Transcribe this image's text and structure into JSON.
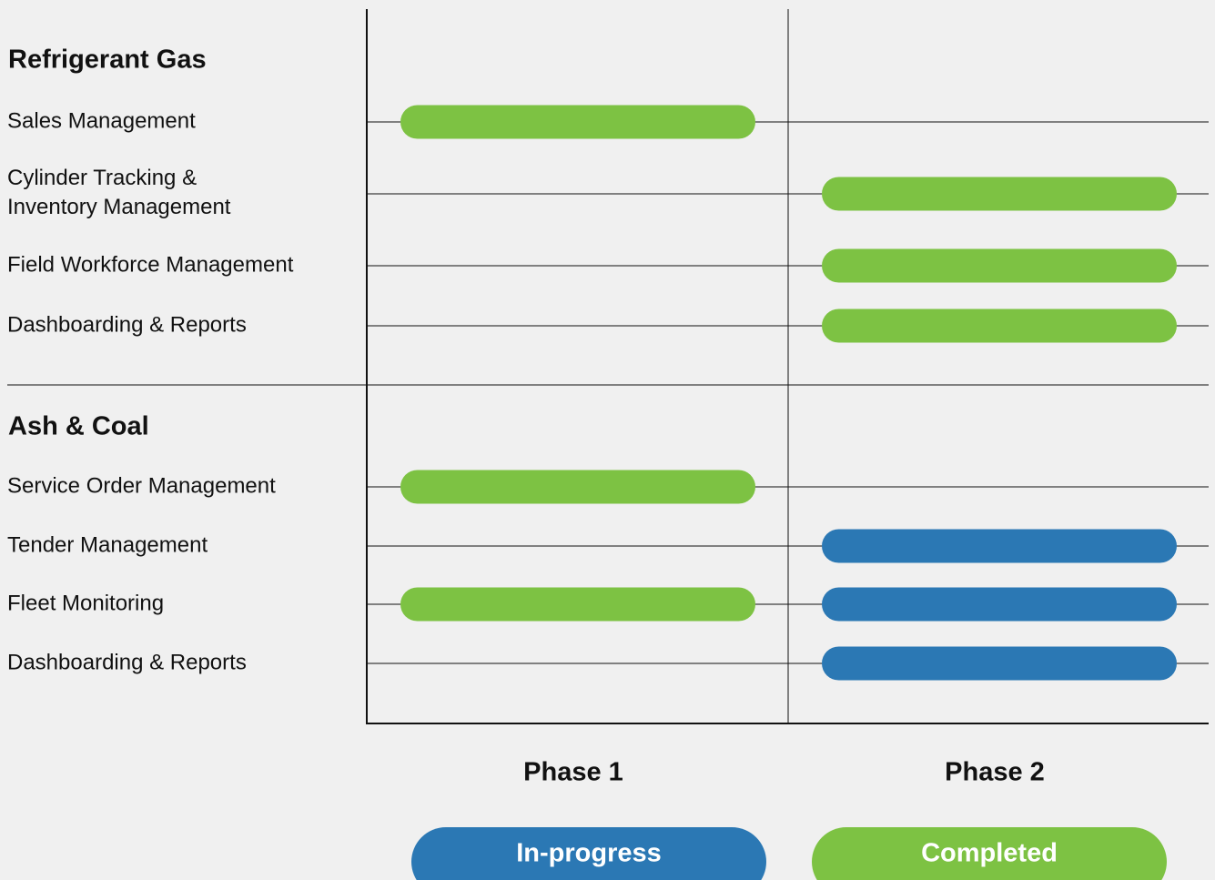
{
  "phases": [
    "Phase 1",
    "Phase 2"
  ],
  "legend": [
    {
      "label": "In-progress",
      "color": "#2b78b4"
    },
    {
      "label": "Completed",
      "color": "#7dc243"
    }
  ],
  "groups": [
    {
      "title": "Refrigerant Gas",
      "rows": [
        {
          "label": "Sales Management",
          "bars": [
            "Completed",
            null
          ]
        },
        {
          "label": "Cylinder Tracking &\nInventory Management",
          "bars": [
            null,
            "Completed"
          ]
        },
        {
          "label": "Field Workforce Management",
          "bars": [
            null,
            "Completed"
          ]
        },
        {
          "label": "Dashboarding & Reports",
          "bars": [
            null,
            "Completed"
          ]
        }
      ]
    },
    {
      "title": "Ash & Coal",
      "rows": [
        {
          "label": "Service Order Management",
          "bars": [
            "Completed",
            null
          ]
        },
        {
          "label": "Tender Management",
          "bars": [
            null,
            "In-progress"
          ]
        },
        {
          "label": "Fleet Monitoring",
          "bars": [
            "Completed",
            "In-progress"
          ]
        },
        {
          "label": "Dashboarding & Reports",
          "bars": [
            null,
            "In-progress"
          ]
        }
      ]
    }
  ]
}
